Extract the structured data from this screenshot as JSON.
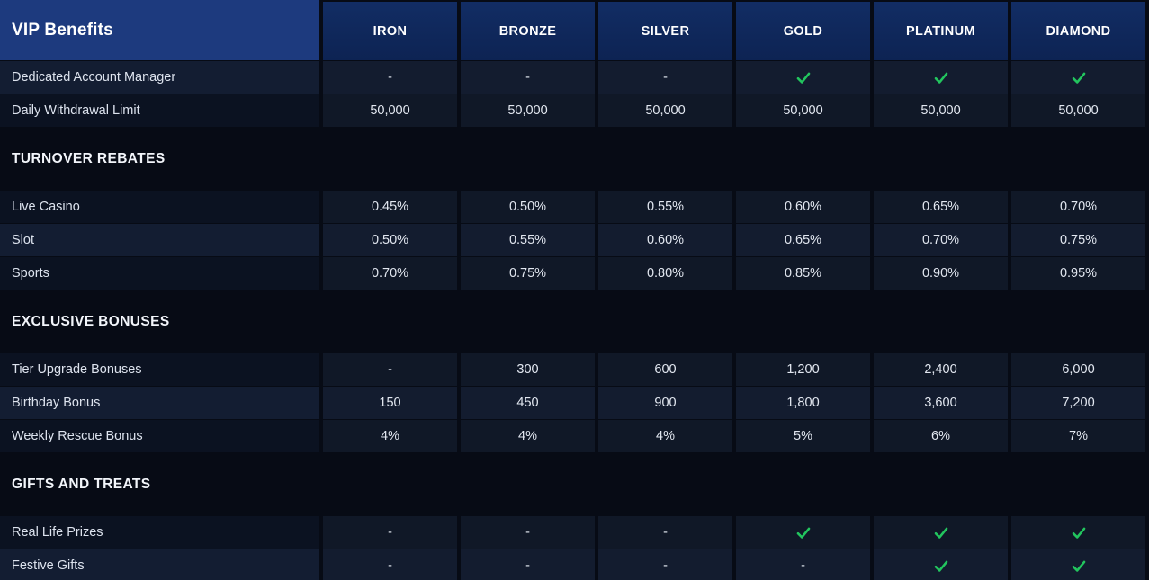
{
  "colors": {
    "page_background": "#070b15",
    "title_header_blue": "#1d3a7e",
    "tier_header_navy": "#0f2a5e",
    "check_green": "#22c55e"
  },
  "table": {
    "title": "VIP Benefits",
    "tiers": [
      "IRON",
      "BRONZE",
      "SILVER",
      "GOLD",
      "PLATINUM",
      "DIAMOND"
    ],
    "check_token": "check",
    "dash_token": "-",
    "sections": [
      {
        "heading": "",
        "rows": [
          {
            "label": "Dedicated Account Manager",
            "shade": "light",
            "values": [
              "-",
              "-",
              "-",
              "check",
              "check",
              "check"
            ]
          },
          {
            "label": "Daily Withdrawal Limit",
            "shade": "dark",
            "values": [
              "50,000",
              "50,000",
              "50,000",
              "50,000",
              "50,000",
              "50,000"
            ]
          }
        ]
      },
      {
        "heading": "TURNOVER REBATES",
        "rows": [
          {
            "label": "Live Casino",
            "shade": "dark",
            "values": [
              "0.45%",
              "0.50%",
              "0.55%",
              "0.60%",
              "0.65%",
              "0.70%"
            ]
          },
          {
            "label": "Slot",
            "shade": "light",
            "values": [
              "0.50%",
              "0.55%",
              "0.60%",
              "0.65%",
              "0.70%",
              "0.75%"
            ]
          },
          {
            "label": "Sports",
            "shade": "dark",
            "values": [
              "0.70%",
              "0.75%",
              "0.80%",
              "0.85%",
              "0.90%",
              "0.95%"
            ]
          }
        ]
      },
      {
        "heading": "EXCLUSIVE BONUSES",
        "rows": [
          {
            "label": "Tier Upgrade Bonuses",
            "shade": "dark",
            "values": [
              "-",
              "300",
              "600",
              "1,200",
              "2,400",
              "6,000"
            ]
          },
          {
            "label": "Birthday Bonus",
            "shade": "light",
            "values": [
              "150",
              "450",
              "900",
              "1,800",
              "3,600",
              "7,200"
            ]
          },
          {
            "label": "Weekly Rescue Bonus",
            "shade": "dark",
            "values": [
              "4%",
              "4%",
              "4%",
              "5%",
              "6%",
              "7%"
            ]
          }
        ]
      },
      {
        "heading": "GIFTS AND TREATS",
        "rows": [
          {
            "label": "Real Life Prizes",
            "shade": "dark",
            "values": [
              "-",
              "-",
              "-",
              "check",
              "check",
              "check"
            ]
          },
          {
            "label": "Festive Gifts",
            "shade": "light",
            "values": [
              "-",
              "-",
              "-",
              "-",
              "check",
              "check"
            ]
          }
        ]
      }
    ]
  }
}
